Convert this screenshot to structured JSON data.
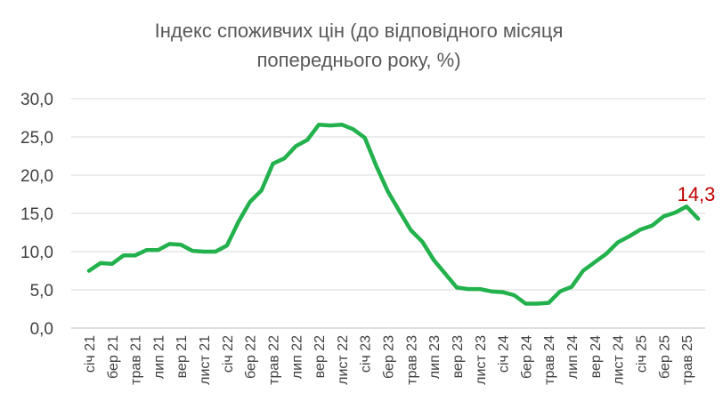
{
  "colors": {
    "series": "#22b14c",
    "callout": "#c00000"
  },
  "chart_data": {
    "type": "line",
    "title": "Індекс споживчих цін (до відповідного місяця попереднього року, %)",
    "title_lines": [
      "Індекс споживчих цін (до відповідного  місяця",
      "попереднього року, %)"
    ],
    "xlabel": "",
    "ylabel": "",
    "ylim": [
      0,
      30
    ],
    "yticks": [
      "0,0",
      "5,0",
      "10,0",
      "15,0",
      "20,0",
      "25,0",
      "30,0"
    ],
    "grid": true,
    "legend": "none",
    "x": [
      "січ 21",
      "лют 21",
      "бер 21",
      "кві 21",
      "трав 21",
      "чер 21",
      "лип 21",
      "сер 21",
      "вер 21",
      "жов 21",
      "лист 21",
      "гру 21",
      "січ 22",
      "лют 22",
      "бер 22",
      "кві 22",
      "трав 22",
      "чер 22",
      "лип 22",
      "сер 22",
      "вер 22",
      "жов 22",
      "лист 22",
      "гру 22",
      "січ 23",
      "лют 23",
      "бер 23",
      "кві 23",
      "трав 23",
      "чер 23",
      "лип 23",
      "сер 23",
      "вер 23",
      "жов 23",
      "лист 23",
      "гру 23",
      "січ 24",
      "лют 24",
      "бер 24",
      "кві 24",
      "трав 24",
      "чер 24",
      "лип 24",
      "сер 24",
      "вер 24",
      "жов 24",
      "лист 24",
      "гру 24",
      "січ 25",
      "лют 25",
      "бер 25",
      "кві 25",
      "трав 25",
      "чер 25"
    ],
    "xtick_labels": [
      "січ 21",
      "бер 21",
      "трав 21",
      "лип 21",
      "вер 21",
      "лист 21",
      "січ 22",
      "бер 22",
      "трав 22",
      "лип 22",
      "вер 22",
      "лист 22",
      "січ 23",
      "бер 23",
      "трав 23",
      "лип 23",
      "вер 23",
      "лист 23",
      "січ 24",
      "бер 24",
      "трав 24",
      "лип 24",
      "вер 24",
      "лист 24",
      "січ 25",
      "бер 25",
      "трав 25"
    ],
    "series": [
      {
        "values": [
          7.5,
          8.5,
          8.4,
          9.5,
          9.5,
          10.2,
          10.2,
          11.0,
          10.9,
          10.1,
          10.0,
          10.0,
          10.8,
          13.9,
          16.5,
          18.0,
          21.5,
          22.2,
          23.8,
          24.6,
          26.6,
          26.5,
          26.6,
          26.0,
          24.9,
          21.2,
          17.9,
          15.3,
          12.8,
          11.3,
          8.9,
          7.1,
          5.3,
          5.1,
          5.1,
          4.8,
          4.7,
          4.3,
          3.2,
          3.2,
          3.3,
          4.8,
          5.4,
          7.5,
          8.6,
          9.7,
          11.2,
          12.0,
          12.9,
          13.4,
          14.6,
          15.1,
          15.9,
          14.3
        ]
      }
    ],
    "annotations": [
      {
        "x": "чер 25",
        "text": "14,3"
      }
    ]
  }
}
